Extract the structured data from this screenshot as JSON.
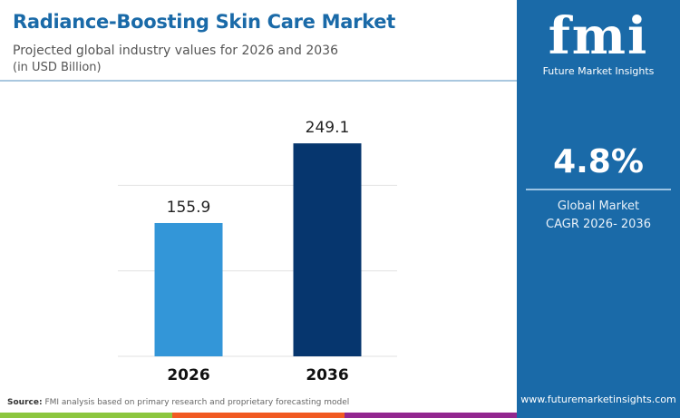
{
  "header": {
    "title": "Radiance-Boosting Skin Care Market",
    "subtitle": "Projected global industry values for 2026 and 2036",
    "unit": "(in USD Billion)"
  },
  "chart_data": {
    "type": "bar",
    "categories": [
      "2026",
      "2036"
    ],
    "values": [
      155.9,
      249.1
    ],
    "value_labels": [
      "155.9",
      "249.1"
    ],
    "colors": [
      "#3396d8",
      "#06366e"
    ],
    "ylim": [
      0,
      250
    ],
    "grid": true,
    "title": "",
    "xlabel": "",
    "ylabel": ""
  },
  "panel": {
    "logo": "fmi",
    "logo_sub": "Future Market Insights",
    "cagr": "4.8%",
    "cagr_label_1": "Global Market",
    "cagr_label_2": "CAGR 2026- 2036",
    "website": "www.futuremarketinsights.com",
    "bg": "#1a6aa8"
  },
  "footer": {
    "source_label": "Source:",
    "source_text": "FMI analysis based on primary research and proprietary forecasting model",
    "stripe_colors": [
      "#8cc63f",
      "#f15a22",
      "#92278f"
    ]
  }
}
